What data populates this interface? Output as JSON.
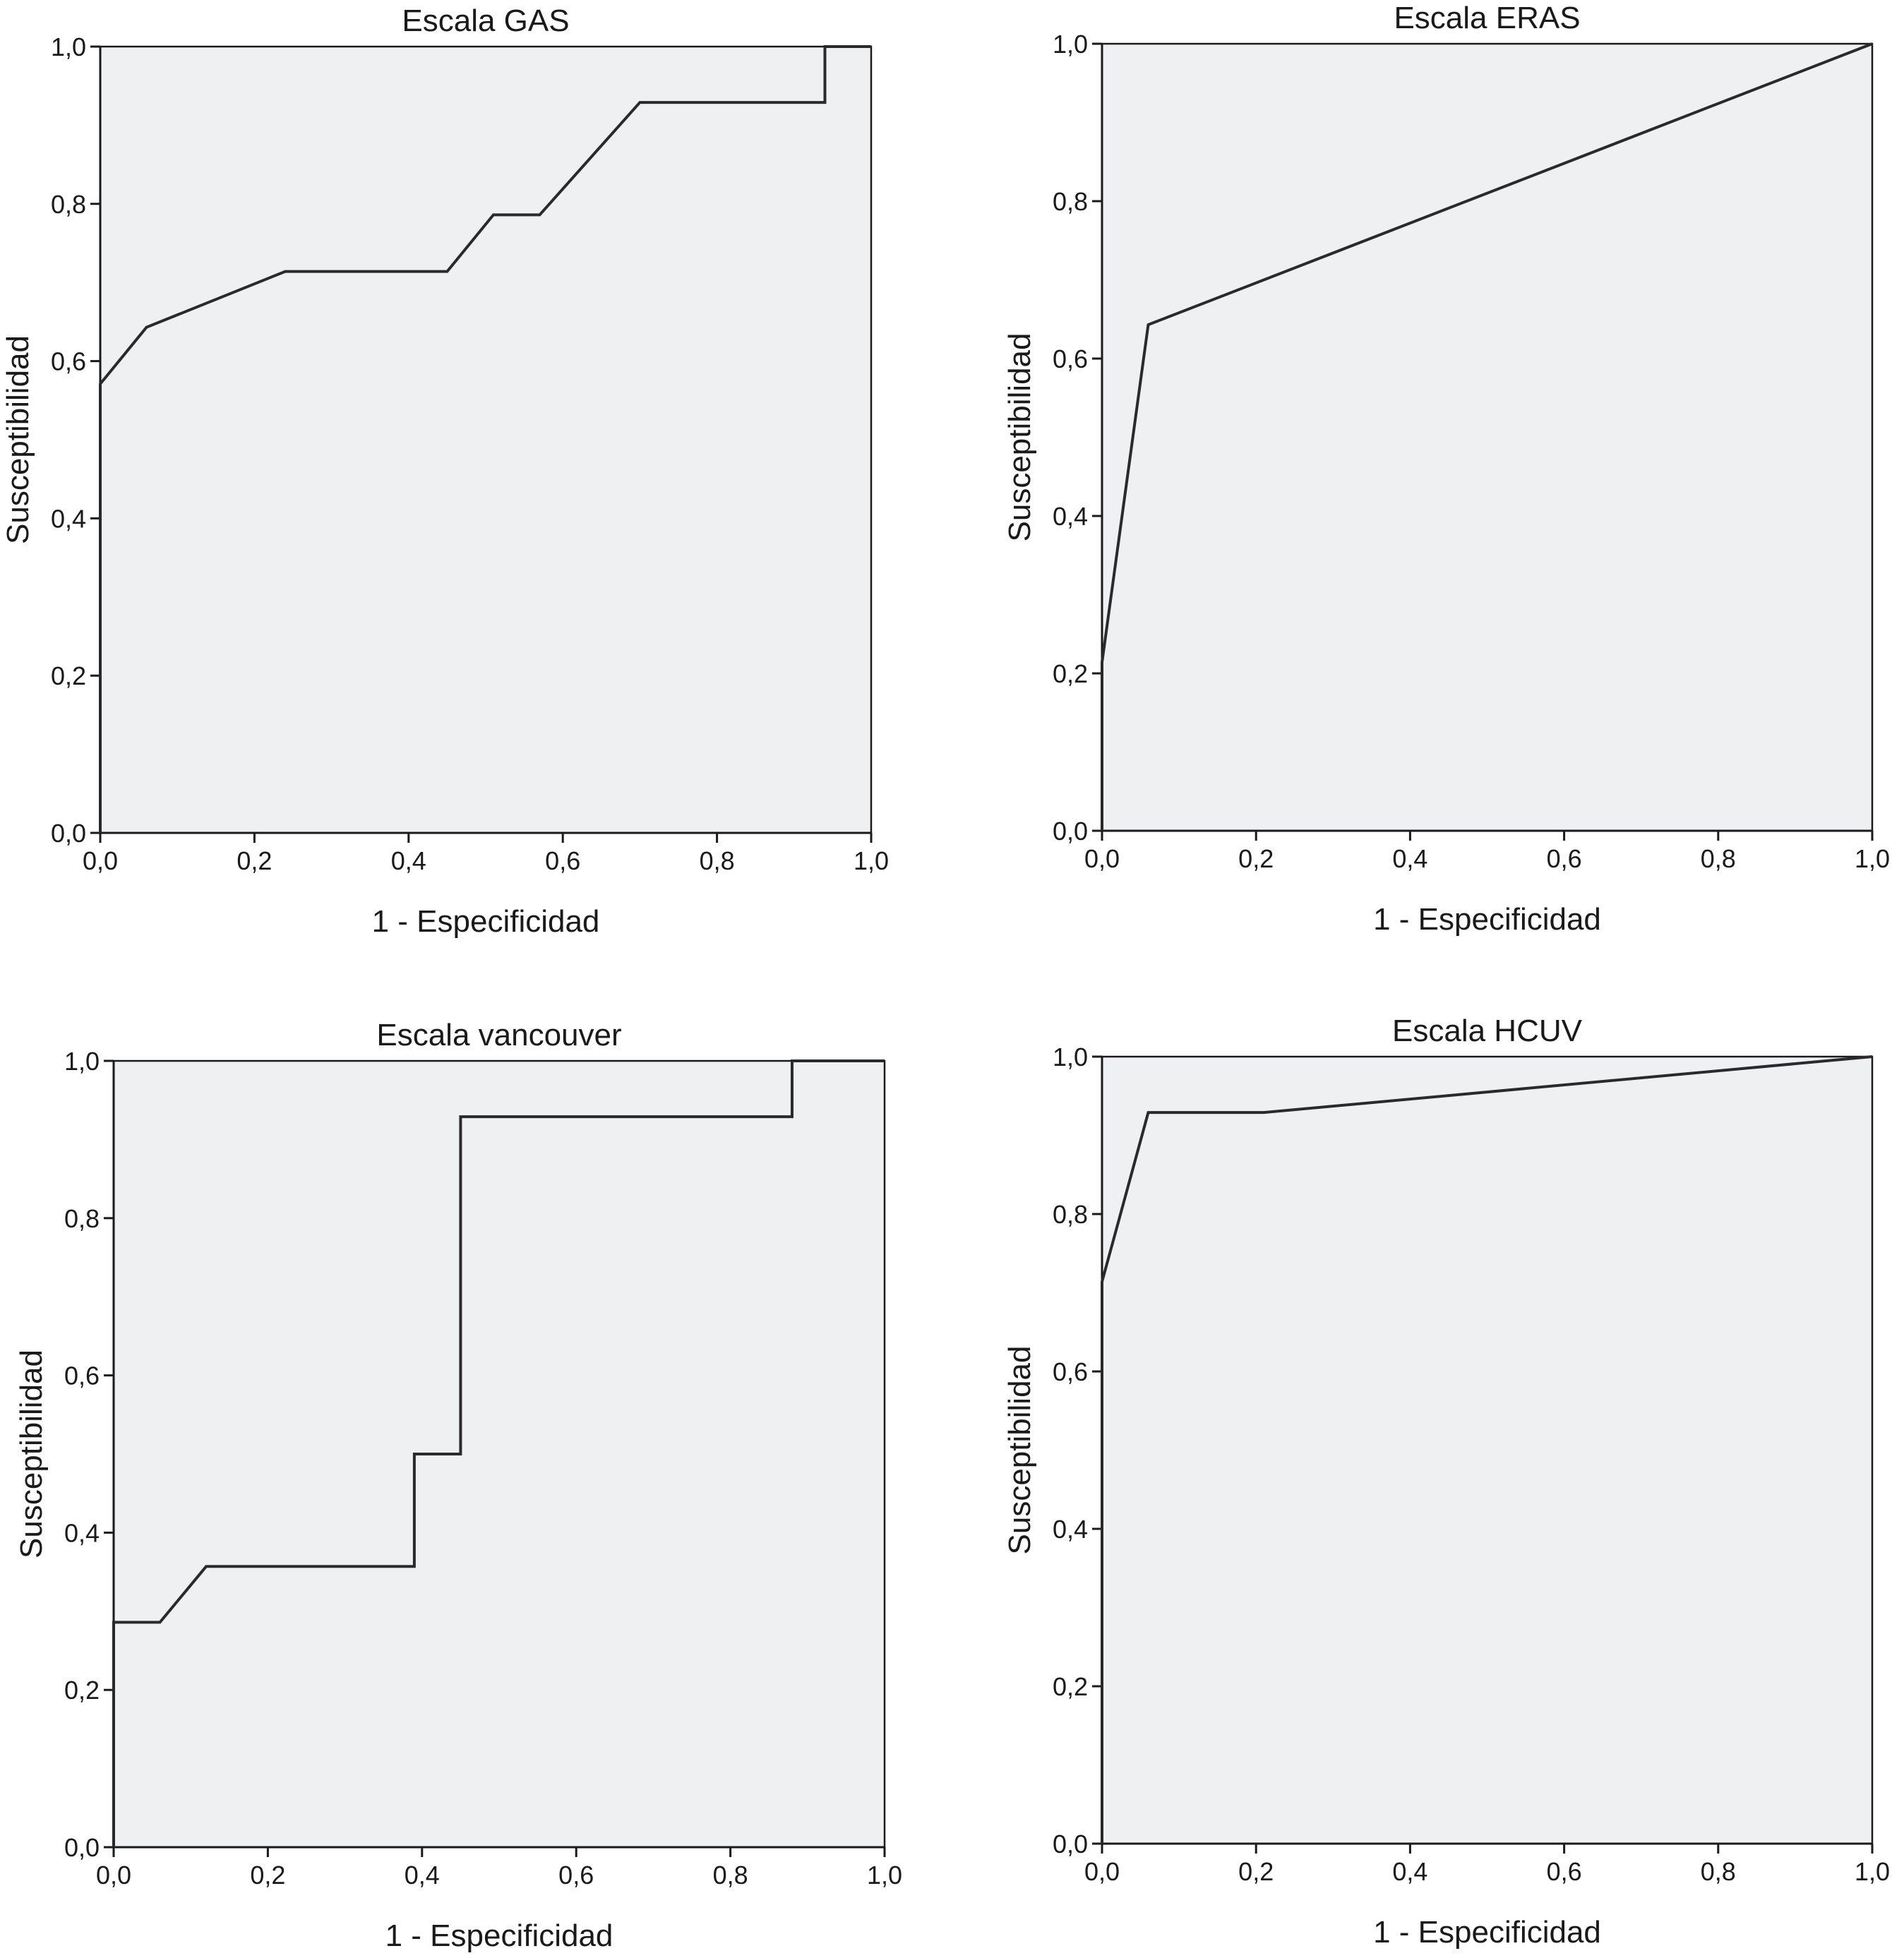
{
  "chart_data": [
    {
      "type": "line",
      "title": "Escala GAS",
      "xlabel": "1 - Especificidad",
      "ylabel": "Susceptibilidad",
      "xlim": [
        0,
        1
      ],
      "ylim": [
        0,
        1
      ],
      "xticks": [
        "0,0",
        "0,2",
        "0,4",
        "0,6",
        "0,8",
        "1,0"
      ],
      "yticks": [
        "0,0",
        "0,2",
        "0,4",
        "0,6",
        "0,8",
        "1,0"
      ],
      "grid": false,
      "series": [
        {
          "x": [
            0,
            0,
            0.06,
            0.24,
            0.45,
            0.51,
            0.57,
            0.7,
            0.94,
            0.94,
            1.0
          ],
          "y": [
            0,
            0.571,
            0.643,
            0.714,
            0.714,
            0.786,
            0.786,
            0.929,
            0.929,
            1.0,
            1.0
          ]
        }
      ]
    },
    {
      "type": "line",
      "title": "Escala ERAS",
      "xlabel": "1 - Especificidad",
      "ylabel": "Susceptibilidad",
      "xlim": [
        0,
        1
      ],
      "ylim": [
        0,
        1
      ],
      "xticks": [
        "0,0",
        "0,2",
        "0,4",
        "0,6",
        "0,8",
        "1,0"
      ],
      "yticks": [
        "0,0",
        "0,2",
        "0,4",
        "0,6",
        "0,8",
        "1,0"
      ],
      "grid": false,
      "series": [
        {
          "x": [
            0,
            0,
            0.06,
            1.0
          ],
          "y": [
            0,
            0.214,
            0.643,
            1.0
          ]
        }
      ]
    },
    {
      "type": "line",
      "title": "Escala vancouver",
      "xlabel": "1 - Especificidad",
      "ylabel": "Susceptibilidad",
      "xlim": [
        0,
        1
      ],
      "ylim": [
        0,
        1
      ],
      "xticks": [
        "0,0",
        "0,2",
        "0,4",
        "0,6",
        "0,8",
        "1,0"
      ],
      "yticks": [
        "0,0",
        "0,2",
        "0,4",
        "0,6",
        "0,8",
        "1,0"
      ],
      "grid": false,
      "series": [
        {
          "x": [
            0,
            0,
            0.06,
            0.12,
            0.39,
            0.39,
            0.45,
            0.45,
            0.88,
            0.88,
            1.0
          ],
          "y": [
            0,
            0.286,
            0.286,
            0.357,
            0.357,
            0.5,
            0.5,
            0.929,
            0.929,
            1.0,
            1.0
          ]
        }
      ]
    },
    {
      "type": "line",
      "title": "Escala HCUV",
      "xlabel": "1 - Especificidad",
      "ylabel": "Susceptibilidad",
      "xlim": [
        0,
        1
      ],
      "ylim": [
        0,
        1
      ],
      "xticks": [
        "0,0",
        "0,2",
        "0,4",
        "0,6",
        "0,8",
        "1,0"
      ],
      "yticks": [
        "0,0",
        "0,2",
        "0,4",
        "0,6",
        "0,8",
        "1,0"
      ],
      "grid": false,
      "series": [
        {
          "x": [
            0,
            0,
            0.06,
            0.21,
            1.0
          ],
          "y": [
            0,
            0.714,
            0.929,
            0.929,
            1.0
          ]
        }
      ]
    }
  ]
}
